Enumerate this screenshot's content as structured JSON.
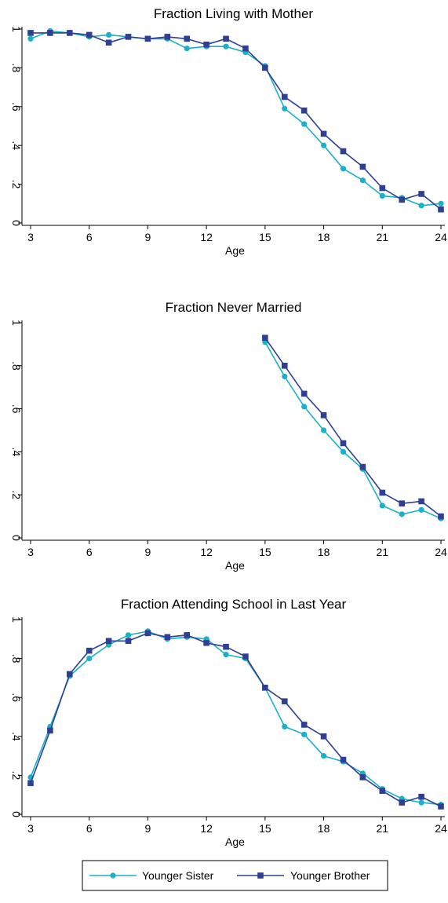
{
  "colors": {
    "sister": "#1ab0c8",
    "brother": "#2e3f94",
    "axis": "#000000"
  },
  "legend": {
    "items": [
      {
        "series": "sister",
        "label": "Younger Sister",
        "marker": "circle"
      },
      {
        "series": "brother",
        "label": "Younger Brother",
        "marker": "square"
      }
    ]
  },
  "chart_data": [
    {
      "type": "line",
      "title": "Fraction Living with Mother",
      "xlabel": "Age",
      "ylabel": "",
      "xlim": [
        3,
        24
      ],
      "ylim": [
        0,
        1
      ],
      "xticks": [
        3,
        6,
        9,
        12,
        15,
        18,
        21,
        24
      ],
      "yticks": [
        0,
        0.2,
        0.4,
        0.6,
        0.8,
        1
      ],
      "ytick_labels": [
        "0",
        ".2",
        ".4",
        ".6",
        ".8",
        "1"
      ],
      "grid": false,
      "series": [
        {
          "name": "Younger Sister",
          "key": "sister",
          "x": [
            3,
            4,
            5,
            6,
            7,
            8,
            9,
            10,
            11,
            12,
            13,
            14,
            15,
            16,
            17,
            18,
            19,
            20,
            21,
            22,
            23,
            24
          ],
          "values": [
            0.95,
            0.99,
            0.98,
            0.96,
            0.97,
            0.96,
            0.95,
            0.95,
            0.9,
            0.91,
            0.91,
            0.88,
            0.81,
            0.59,
            0.51,
            0.4,
            0.28,
            0.22,
            0.14,
            0.13,
            0.09,
            0.1
          ]
        },
        {
          "name": "Younger Brother",
          "key": "brother",
          "x": [
            3,
            4,
            5,
            6,
            7,
            8,
            9,
            10,
            11,
            12,
            13,
            14,
            15,
            16,
            17,
            18,
            19,
            20,
            21,
            22,
            23,
            24
          ],
          "values": [
            0.98,
            0.98,
            0.98,
            0.97,
            0.93,
            0.96,
            0.95,
            0.96,
            0.95,
            0.92,
            0.95,
            0.9,
            0.8,
            0.65,
            0.58,
            0.46,
            0.37,
            0.29,
            0.18,
            0.12,
            0.15,
            0.07
          ]
        }
      ]
    },
    {
      "type": "line",
      "title": "Fraction Never Married",
      "xlabel": "Age",
      "ylabel": "",
      "xlim": [
        3,
        24
      ],
      "ylim": [
        0,
        1
      ],
      "xticks": [
        3,
        6,
        9,
        12,
        15,
        18,
        21,
        24
      ],
      "yticks": [
        0,
        0.2,
        0.4,
        0.6,
        0.8,
        1
      ],
      "ytick_labels": [
        "0",
        ".2",
        ".4",
        ".6",
        ".8",
        "1"
      ],
      "grid": false,
      "series": [
        {
          "name": "Younger Sister",
          "key": "sister",
          "x": [
            15,
            16,
            17,
            18,
            19,
            20,
            21,
            22,
            23,
            24
          ],
          "values": [
            0.91,
            0.75,
            0.61,
            0.5,
            0.4,
            0.32,
            0.15,
            0.11,
            0.13,
            0.09
          ]
        },
        {
          "name": "Younger Brother",
          "key": "brother",
          "x": [
            15,
            16,
            17,
            18,
            19,
            20,
            21,
            22,
            23,
            24
          ],
          "values": [
            0.93,
            0.8,
            0.67,
            0.57,
            0.44,
            0.33,
            0.21,
            0.16,
            0.17,
            0.1
          ]
        }
      ]
    },
    {
      "type": "line",
      "title": "Fraction Attending School in Last Year",
      "xlabel": "Age",
      "ylabel": "",
      "xlim": [
        3,
        24
      ],
      "ylim": [
        0,
        1
      ],
      "xticks": [
        3,
        6,
        9,
        12,
        15,
        18,
        21,
        24
      ],
      "yticks": [
        0,
        0.2,
        0.4,
        0.6,
        0.8,
        1
      ],
      "ytick_labels": [
        "0",
        ".2",
        ".4",
        ".6",
        ".8",
        "1"
      ],
      "grid": false,
      "series": [
        {
          "name": "Younger Sister",
          "key": "sister",
          "x": [
            3,
            4,
            5,
            6,
            7,
            8,
            9,
            10,
            11,
            12,
            13,
            14,
            15,
            16,
            17,
            18,
            19,
            20,
            21,
            22,
            23,
            24
          ],
          "values": [
            0.19,
            0.45,
            0.71,
            0.8,
            0.87,
            0.92,
            0.94,
            0.9,
            0.91,
            0.9,
            0.82,
            0.8,
            0.65,
            0.45,
            0.41,
            0.3,
            0.27,
            0.21,
            0.13,
            0.08,
            0.06,
            0.05
          ]
        },
        {
          "name": "Younger Brother",
          "key": "brother",
          "x": [
            3,
            4,
            5,
            6,
            7,
            8,
            9,
            10,
            11,
            12,
            13,
            14,
            15,
            16,
            17,
            18,
            19,
            20,
            21,
            22,
            23,
            24
          ],
          "values": [
            0.16,
            0.43,
            0.72,
            0.84,
            0.89,
            0.89,
            0.93,
            0.91,
            0.92,
            0.88,
            0.86,
            0.81,
            0.65,
            0.58,
            0.46,
            0.4,
            0.28,
            0.19,
            0.12,
            0.06,
            0.09,
            0.04
          ]
        }
      ]
    }
  ]
}
